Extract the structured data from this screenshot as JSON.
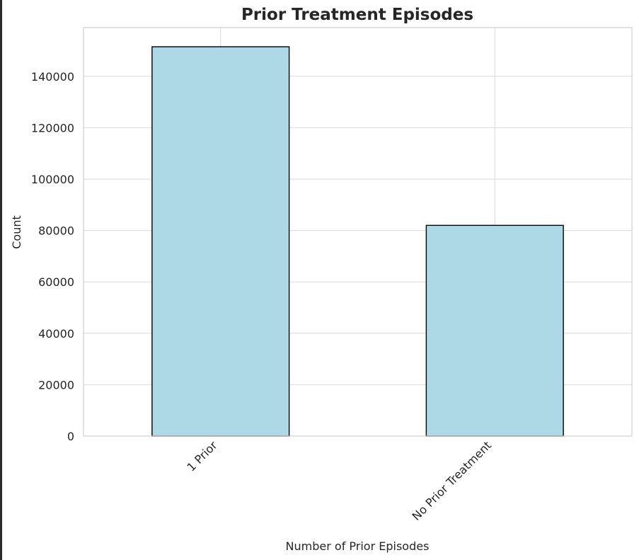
{
  "chart_data": {
    "type": "bar",
    "title": "Prior Treatment Episodes",
    "xlabel": "Number of Prior Episodes",
    "ylabel": "Count",
    "categories": [
      "1 Prior",
      "No Prior Treatment"
    ],
    "values": [
      151500,
      82000
    ],
    "ylim": [
      0,
      158950
    ],
    "yticks": [
      0,
      20000,
      40000,
      60000,
      80000,
      100000,
      120000,
      140000
    ],
    "grid": true,
    "legend": "none",
    "bar_color": "#add8e6",
    "bar_edge_color": "#000000",
    "x_tick_rotation": 45
  }
}
